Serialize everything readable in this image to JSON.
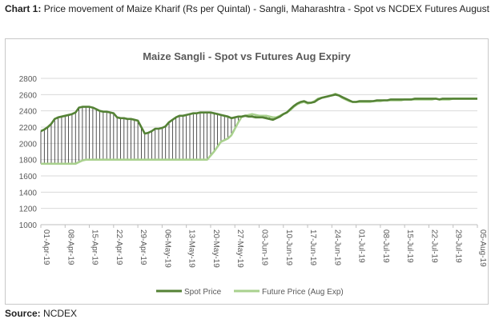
{
  "caption": {
    "prefix": "Chart 1:",
    "text": "Price movement of Maize Kharif (Rs per Quintal) - Sangli, Maharashtra - Spot vs NCDEX Futures August"
  },
  "source": {
    "prefix": "Source:",
    "text": "NCDEX"
  },
  "chart_data": {
    "type": "line",
    "title": "Maize Sangli - Spot vs Futures Aug Expiry",
    "xlabel": "",
    "ylabel": "",
    "ylim": [
      1000,
      2800
    ],
    "yticks": [
      1000,
      1200,
      1400,
      1600,
      1800,
      2000,
      2200,
      2400,
      2600,
      2800
    ],
    "xtick_labels": [
      "01-Apr-19",
      "08-Apr-19",
      "15-Apr-19",
      "22-Apr-19",
      "29-Apr-19",
      "06-May-19",
      "13-May-19",
      "20-May-19",
      "27-May-19",
      "03-Jun-19",
      "10-Jun-19",
      "17-Jun-19",
      "24-Jun-19",
      "01-Jul-19",
      "08-Jul-19",
      "15-Jul-19",
      "22-Jul-19",
      "29-Jul-19",
      "05-Aug-19"
    ],
    "grid": true,
    "legend": "bottom",
    "drop_lines": true,
    "x_range_days": [
      0,
      126
    ],
    "colors": {
      "spot": "#548235",
      "future": "#a9d18e"
    },
    "series": [
      {
        "name": "Spot Price",
        "points": [
          [
            0,
            2150
          ],
          [
            1,
            2170
          ],
          [
            2,
            2200
          ],
          [
            3,
            2240
          ],
          [
            4,
            2300
          ],
          [
            5,
            2320
          ],
          [
            6,
            2330
          ],
          [
            7,
            2340
          ],
          [
            8,
            2350
          ],
          [
            9,
            2360
          ],
          [
            10,
            2380
          ],
          [
            11,
            2440
          ],
          [
            12,
            2450
          ],
          [
            13,
            2450
          ],
          [
            14,
            2450
          ],
          [
            15,
            2440
          ],
          [
            16,
            2420
          ],
          [
            17,
            2400
          ],
          [
            18,
            2390
          ],
          [
            19,
            2390
          ],
          [
            20,
            2380
          ],
          [
            21,
            2370
          ],
          [
            22,
            2320
          ],
          [
            23,
            2310
          ],
          [
            24,
            2310
          ],
          [
            25,
            2300
          ],
          [
            26,
            2300
          ],
          [
            27,
            2290
          ],
          [
            28,
            2280
          ],
          [
            29,
            2200
          ],
          [
            30,
            2120
          ],
          [
            31,
            2130
          ],
          [
            32,
            2150
          ],
          [
            33,
            2180
          ],
          [
            34,
            2180
          ],
          [
            35,
            2190
          ],
          [
            36,
            2210
          ],
          [
            37,
            2260
          ],
          [
            38,
            2290
          ],
          [
            39,
            2320
          ],
          [
            40,
            2340
          ],
          [
            41,
            2340
          ],
          [
            42,
            2350
          ],
          [
            43,
            2360
          ],
          [
            44,
            2370
          ],
          [
            45,
            2370
          ],
          [
            46,
            2380
          ],
          [
            47,
            2380
          ],
          [
            48,
            2380
          ],
          [
            49,
            2380
          ],
          [
            50,
            2370
          ],
          [
            51,
            2360
          ],
          [
            52,
            2350
          ],
          [
            53,
            2340
          ],
          [
            54,
            2330
          ],
          [
            55,
            2310
          ],
          [
            56,
            2320
          ],
          [
            57,
            2330
          ],
          [
            58,
            2330
          ],
          [
            59,
            2340
          ],
          [
            60,
            2330
          ],
          [
            61,
            2330
          ],
          [
            62,
            2320
          ],
          [
            63,
            2320
          ],
          [
            64,
            2320
          ],
          [
            65,
            2310
          ],
          [
            66,
            2300
          ],
          [
            67,
            2290
          ],
          [
            68,
            2310
          ],
          [
            69,
            2330
          ],
          [
            70,
            2360
          ],
          [
            71,
            2380
          ],
          [
            72,
            2420
          ],
          [
            73,
            2460
          ],
          [
            74,
            2490
          ],
          [
            75,
            2510
          ],
          [
            76,
            2520
          ],
          [
            77,
            2500
          ],
          [
            78,
            2500
          ],
          [
            79,
            2510
          ],
          [
            80,
            2540
          ],
          [
            81,
            2560
          ],
          [
            82,
            2570
          ],
          [
            83,
            2580
          ],
          [
            84,
            2590
          ],
          [
            85,
            2600
          ],
          [
            86,
            2590
          ],
          [
            87,
            2570
          ],
          [
            88,
            2550
          ],
          [
            89,
            2530
          ],
          [
            90,
            2510
          ],
          [
            91,
            2510
          ],
          [
            92,
            2520
          ],
          [
            93,
            2520
          ],
          [
            94,
            2520
          ],
          [
            95,
            2520
          ],
          [
            96,
            2520
          ],
          [
            97,
            2530
          ],
          [
            98,
            2530
          ],
          [
            99,
            2530
          ],
          [
            100,
            2530
          ],
          [
            101,
            2540
          ],
          [
            102,
            2540
          ],
          [
            103,
            2540
          ],
          [
            104,
            2540
          ],
          [
            105,
            2540
          ],
          [
            106,
            2540
          ],
          [
            107,
            2540
          ],
          [
            108,
            2550
          ],
          [
            109,
            2550
          ],
          [
            110,
            2550
          ],
          [
            111,
            2550
          ],
          [
            112,
            2550
          ],
          [
            113,
            2550
          ],
          [
            114,
            2550
          ],
          [
            115,
            2540
          ],
          [
            116,
            2550
          ],
          [
            117,
            2550
          ],
          [
            118,
            2550
          ],
          [
            119,
            2550
          ],
          [
            120,
            2550
          ],
          [
            121,
            2550
          ],
          [
            122,
            2550
          ],
          [
            123,
            2550
          ],
          [
            124,
            2550
          ],
          [
            125,
            2550
          ],
          [
            126,
            2550
          ]
        ]
      },
      {
        "name": "Future Price (Aug Exp)",
        "points": [
          [
            0,
            1750
          ],
          [
            10,
            1750
          ],
          [
            11,
            1770
          ],
          [
            12,
            1790
          ],
          [
            13,
            1800
          ],
          [
            40,
            1800
          ],
          [
            48,
            1800
          ],
          [
            49,
            1850
          ],
          [
            50,
            1900
          ],
          [
            51,
            1960
          ],
          [
            52,
            2020
          ],
          [
            53,
            2040
          ],
          [
            54,
            2060
          ],
          [
            55,
            2100
          ],
          [
            56,
            2180
          ],
          [
            57,
            2260
          ],
          [
            58,
            2330
          ],
          [
            59,
            2340
          ],
          [
            60,
            2350
          ],
          [
            61,
            2360
          ],
          [
            62,
            2350
          ],
          [
            63,
            2340
          ],
          [
            64,
            2340
          ],
          [
            65,
            2340
          ],
          [
            66,
            2330
          ],
          [
            67,
            2320
          ],
          [
            68,
            2320
          ],
          [
            69,
            2340
          ],
          [
            70,
            2360
          ],
          [
            71,
            2380
          ],
          [
            72,
            2410
          ],
          [
            73,
            2450
          ],
          [
            74,
            2480
          ],
          [
            75,
            2500
          ],
          [
            76,
            2510
          ],
          [
            77,
            2490
          ],
          [
            78,
            2500
          ],
          [
            79,
            2520
          ],
          [
            80,
            2550
          ],
          [
            81,
            2560
          ],
          [
            82,
            2570
          ],
          [
            83,
            2580
          ],
          [
            84,
            2590
          ],
          [
            85,
            2610
          ],
          [
            86,
            2590
          ],
          [
            87,
            2560
          ],
          [
            88,
            2540
          ],
          [
            89,
            2520
          ],
          [
            90,
            2510
          ],
          [
            91,
            2510
          ],
          [
            92,
            2510
          ],
          [
            93,
            2510
          ],
          [
            94,
            2510
          ],
          [
            95,
            2510
          ],
          [
            96,
            2520
          ],
          [
            97,
            2520
          ],
          [
            98,
            2520
          ],
          [
            99,
            2530
          ],
          [
            100,
            2530
          ],
          [
            101,
            2530
          ],
          [
            102,
            2530
          ],
          [
            103,
            2530
          ],
          [
            104,
            2530
          ],
          [
            105,
            2540
          ],
          [
            106,
            2540
          ],
          [
            107,
            2540
          ],
          [
            108,
            2540
          ],
          [
            109,
            2540
          ],
          [
            110,
            2540
          ],
          [
            111,
            2540
          ],
          [
            112,
            2540
          ],
          [
            113,
            2540
          ],
          [
            114,
            2550
          ],
          [
            115,
            2540
          ],
          [
            116,
            2540
          ],
          [
            117,
            2540
          ],
          [
            118,
            2540
          ],
          [
            119,
            2550
          ],
          [
            120,
            2550
          ],
          [
            121,
            2550
          ],
          [
            122,
            2550
          ],
          [
            123,
            2550
          ],
          [
            124,
            2550
          ],
          [
            125,
            2550
          ],
          [
            126,
            2550
          ]
        ]
      }
    ]
  }
}
